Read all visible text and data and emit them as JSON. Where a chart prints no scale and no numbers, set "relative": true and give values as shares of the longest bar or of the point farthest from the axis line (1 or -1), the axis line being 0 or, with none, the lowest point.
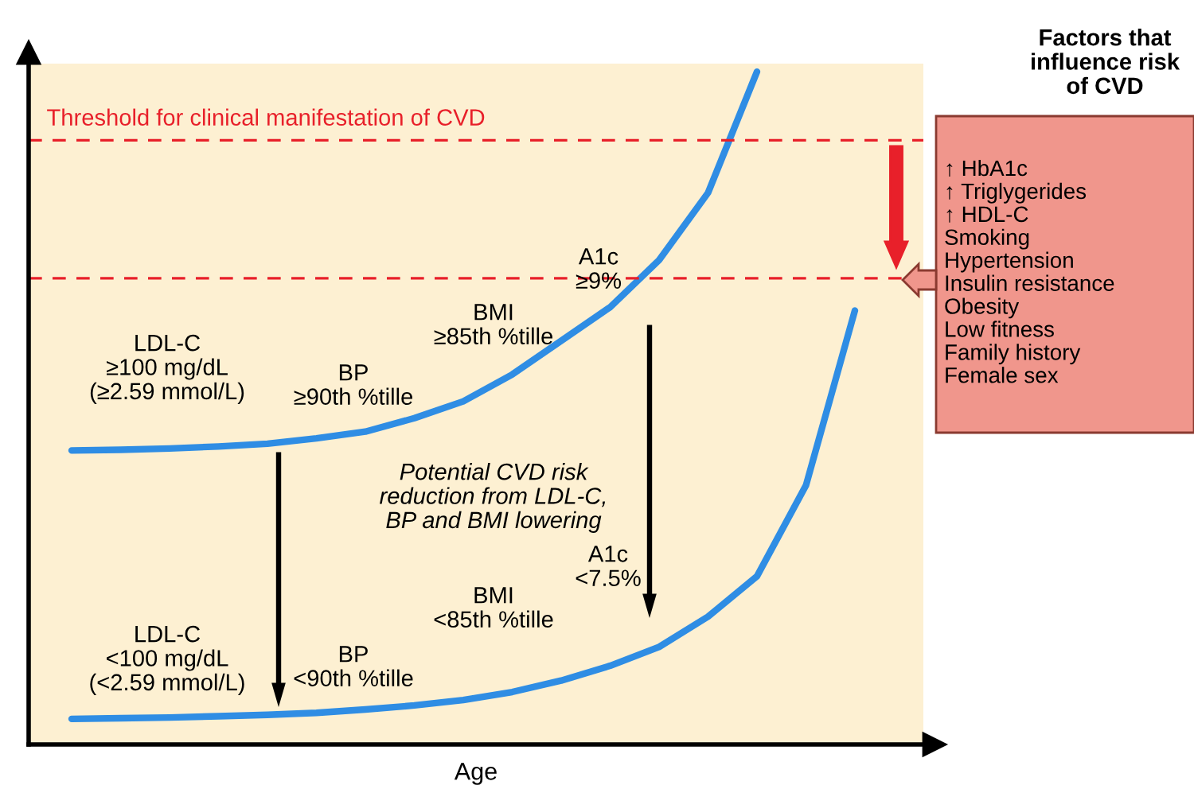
{
  "chart_data": {
    "type": "line",
    "relative": true,
    "xlabel": "Age",
    "marker": "none",
    "line_style": "solid",
    "categories": [
      null,
      null,
      null,
      null,
      null,
      null,
      null,
      null,
      null,
      null,
      null,
      null,
      null,
      null,
      null,
      null,
      null,
      null
    ],
    "series": [
      {
        "color": "#2f8de4",
        "values": [
          0.437,
          0.438,
          0.44,
          0.443,
          0.447,
          0.455,
          0.465,
          0.485,
          0.51,
          0.55,
          0.6,
          0.65,
          0.72,
          0.82,
          1.0,
          null,
          null,
          null
        ]
      },
      {
        "color": "#2f8de4",
        "values": [
          0.038,
          0.039,
          0.04,
          0.042,
          0.044,
          0.047,
          0.052,
          0.058,
          0.066,
          0.078,
          0.095,
          0.117,
          0.145,
          0.19,
          0.25,
          0.385,
          0.645,
          null
        ]
      }
    ],
    "ref_lines": [
      {
        "axis": "y",
        "value": 0.898,
        "label": "Threshold for clinical manifestation of CVD",
        "color": "#e8202a",
        "line_style": "dashed"
      },
      {
        "axis": "y",
        "value": 0.693,
        "color": "#e8202a",
        "line_style": "dashed"
      }
    ],
    "annotations": [
      "LDL-C\n≥100 mg/dL\n(≥2.59 mmol/L)",
      "BP\n≥90th %tille",
      "BMI\n≥85th %tille",
      "A1c\n≥9%",
      "Potential CVD risk\nreduction from LDL-C,\nBP and BMI lowering",
      "LDL-C\n<100 mg/dL\n(<2.59 mmol/L)",
      "BP\n<90th %tille",
      "BMI\n<85th %tille",
      "A1c\n<7.5%",
      "Factors that\ninfluence risk\nof CVD",
      "↑ HbA1c\n↑ Triglygerides\n↑ HDL-C\nSmoking\nHypertension\nInsulin resistance\nObesity\nLow fitness\nFamily history\nFemale sex"
    ]
  }
}
